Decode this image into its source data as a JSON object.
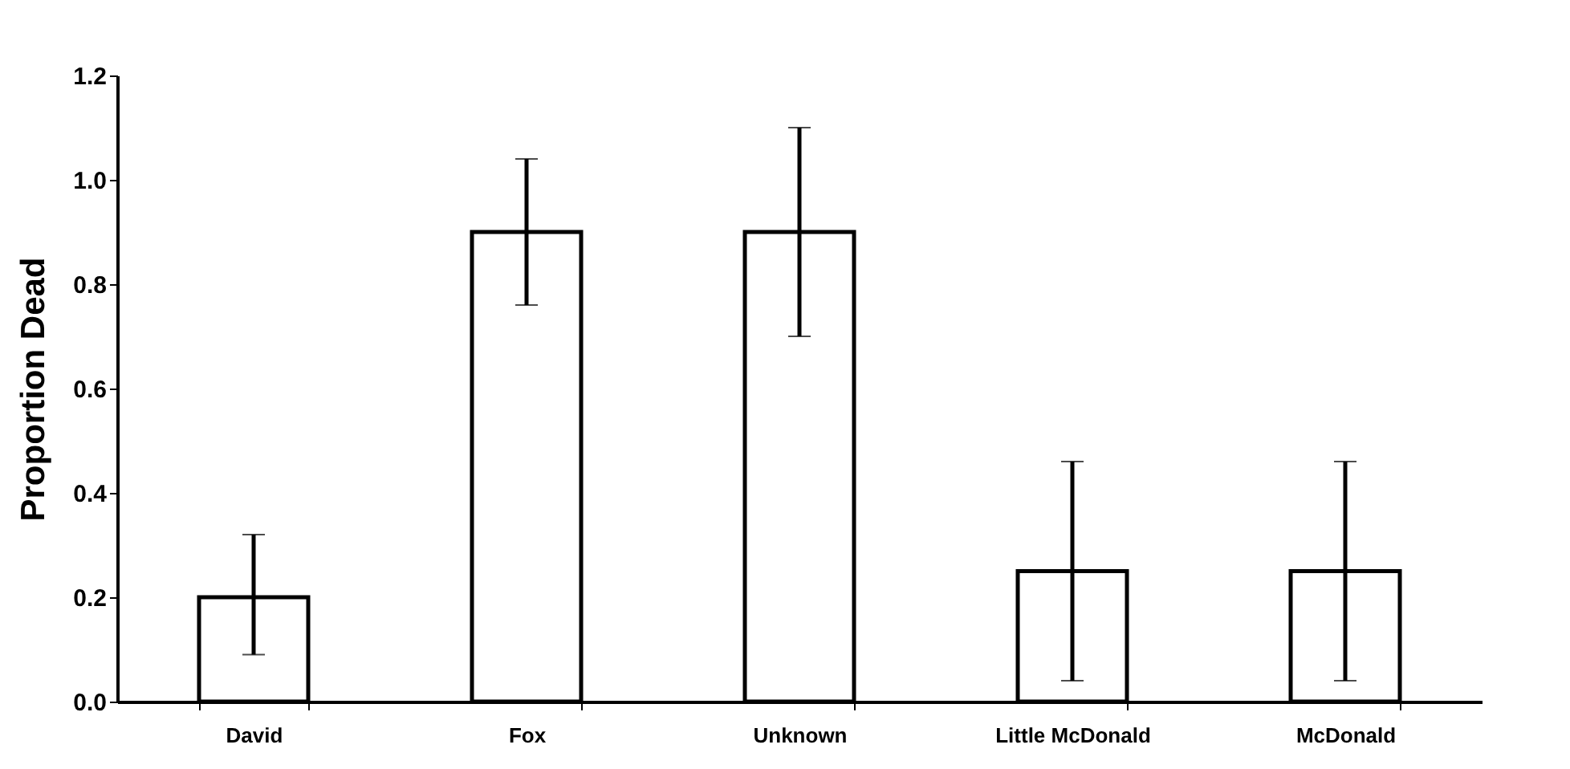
{
  "chart_data": {
    "type": "bar",
    "ylabel": "Proportion Dead",
    "categories": [
      "David",
      "Fox",
      "Unknown",
      "Little McDonald",
      "McDonald"
    ],
    "values": [
      0.2,
      0.9,
      0.9,
      0.25,
      0.25
    ],
    "errors": [
      [
        0.09,
        0.32
      ],
      [
        0.76,
        1.04
      ],
      [
        0.7,
        1.1
      ],
      [
        0.04,
        0.46
      ],
      [
        0.04,
        0.46
      ]
    ],
    "color": "#ffffff",
    "ylim": [
      0,
      1.2
    ],
    "yticks": [
      {
        "value": 0,
        "label": "0.0"
      },
      {
        "value": 0.2,
        "label": "0.2"
      },
      {
        "value": 0.4,
        "label": "0.4"
      },
      {
        "value": 0.6,
        "label": "0.6"
      },
      {
        "value": 0.8,
        "label": "0.8"
      },
      {
        "value": 1,
        "label": "1.0"
      },
      {
        "value": 1.2,
        "label": "1.2"
      }
    ],
    "grid": false
  }
}
